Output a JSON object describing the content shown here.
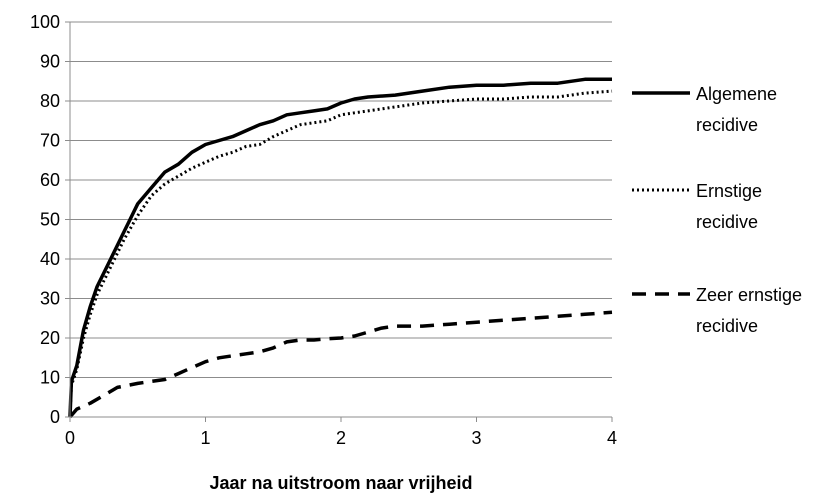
{
  "chart_data": {
    "type": "line",
    "xlabel": "Jaar na uitstroom naar vrijheid",
    "ylabel": "",
    "xlim": [
      0,
      4
    ],
    "ylim": [
      0,
      100
    ],
    "x_ticks": [
      "0",
      "1",
      "2",
      "3",
      "4"
    ],
    "y_ticks": [
      "0",
      "10",
      "20",
      "30",
      "40",
      "50",
      "60",
      "70",
      "80",
      "90",
      "100"
    ],
    "grid": "horizontal",
    "legend_position": "right",
    "series": [
      {
        "name_lines": [
          "Algemene",
          "recidive"
        ],
        "style": "solid",
        "color": "#000000",
        "points": [
          [
            0,
            0
          ],
          [
            0.01,
            9
          ],
          [
            0.05,
            13
          ],
          [
            0.1,
            22
          ],
          [
            0.15,
            28
          ],
          [
            0.2,
            33
          ],
          [
            0.3,
            40
          ],
          [
            0.4,
            47
          ],
          [
            0.5,
            54
          ],
          [
            0.6,
            58
          ],
          [
            0.7,
            62
          ],
          [
            0.8,
            64
          ],
          [
            0.9,
            67
          ],
          [
            1.0,
            69
          ],
          [
            1.1,
            70
          ],
          [
            1.2,
            71
          ],
          [
            1.3,
            72.5
          ],
          [
            1.4,
            74
          ],
          [
            1.5,
            75
          ],
          [
            1.6,
            76.5
          ],
          [
            1.7,
            77
          ],
          [
            1.8,
            77.5
          ],
          [
            1.9,
            78
          ],
          [
            2.0,
            79.5
          ],
          [
            2.1,
            80.5
          ],
          [
            2.2,
            81
          ],
          [
            2.4,
            81.5
          ],
          [
            2.6,
            82.5
          ],
          [
            2.8,
            83.5
          ],
          [
            3.0,
            84
          ],
          [
            3.2,
            84
          ],
          [
            3.4,
            84.5
          ],
          [
            3.6,
            84.5
          ],
          [
            3.8,
            85.5
          ],
          [
            4.0,
            85.5
          ]
        ]
      },
      {
        "name_lines": [
          "Ernstige",
          "recidive"
        ],
        "style": "dotted",
        "color": "#000000",
        "points": [
          [
            0,
            0
          ],
          [
            0.01,
            8
          ],
          [
            0.05,
            12
          ],
          [
            0.1,
            20
          ],
          [
            0.15,
            26
          ],
          [
            0.2,
            31
          ],
          [
            0.3,
            38
          ],
          [
            0.4,
            45
          ],
          [
            0.5,
            51
          ],
          [
            0.6,
            56
          ],
          [
            0.7,
            59
          ],
          [
            0.8,
            61
          ],
          [
            0.9,
            63
          ],
          [
            1.0,
            64.5
          ],
          [
            1.1,
            66
          ],
          [
            1.2,
            67
          ],
          [
            1.3,
            68.5
          ],
          [
            1.4,
            69
          ],
          [
            1.5,
            71
          ],
          [
            1.6,
            72.5
          ],
          [
            1.7,
            74
          ],
          [
            1.8,
            74.5
          ],
          [
            1.9,
            75
          ],
          [
            2.0,
            76.5
          ],
          [
            2.1,
            77
          ],
          [
            2.2,
            77.5
          ],
          [
            2.4,
            78.5
          ],
          [
            2.6,
            79.5
          ],
          [
            2.8,
            80
          ],
          [
            3.0,
            80.5
          ],
          [
            3.2,
            80.5
          ],
          [
            3.4,
            81
          ],
          [
            3.6,
            81
          ],
          [
            3.8,
            82
          ],
          [
            4.0,
            82.5
          ]
        ]
      },
      {
        "name_lines": [
          "Zeer ernstige",
          "recidive"
        ],
        "style": "dashed",
        "color": "#000000",
        "points": [
          [
            0,
            0
          ],
          [
            0.05,
            2
          ],
          [
            0.15,
            3.5
          ],
          [
            0.25,
            5.5
          ],
          [
            0.35,
            7.5
          ],
          [
            0.5,
            8.5
          ],
          [
            0.6,
            9
          ],
          [
            0.7,
            9.5
          ],
          [
            0.8,
            11
          ],
          [
            0.9,
            12.5
          ],
          [
            1.0,
            14
          ],
          [
            1.1,
            15
          ],
          [
            1.2,
            15.5
          ],
          [
            1.3,
            16
          ],
          [
            1.4,
            16.5
          ],
          [
            1.5,
            17.5
          ],
          [
            1.6,
            19
          ],
          [
            1.7,
            19.5
          ],
          [
            1.8,
            19.5
          ],
          [
            1.9,
            19.8
          ],
          [
            2.0,
            20
          ],
          [
            2.1,
            20.5
          ],
          [
            2.2,
            21.5
          ],
          [
            2.3,
            22.5
          ],
          [
            2.4,
            23
          ],
          [
            2.6,
            23
          ],
          [
            2.8,
            23.5
          ],
          [
            3.0,
            24
          ],
          [
            3.2,
            24.5
          ],
          [
            3.4,
            25
          ],
          [
            3.6,
            25.5
          ],
          [
            3.8,
            26
          ],
          [
            4.0,
            26.5
          ]
        ]
      }
    ]
  }
}
